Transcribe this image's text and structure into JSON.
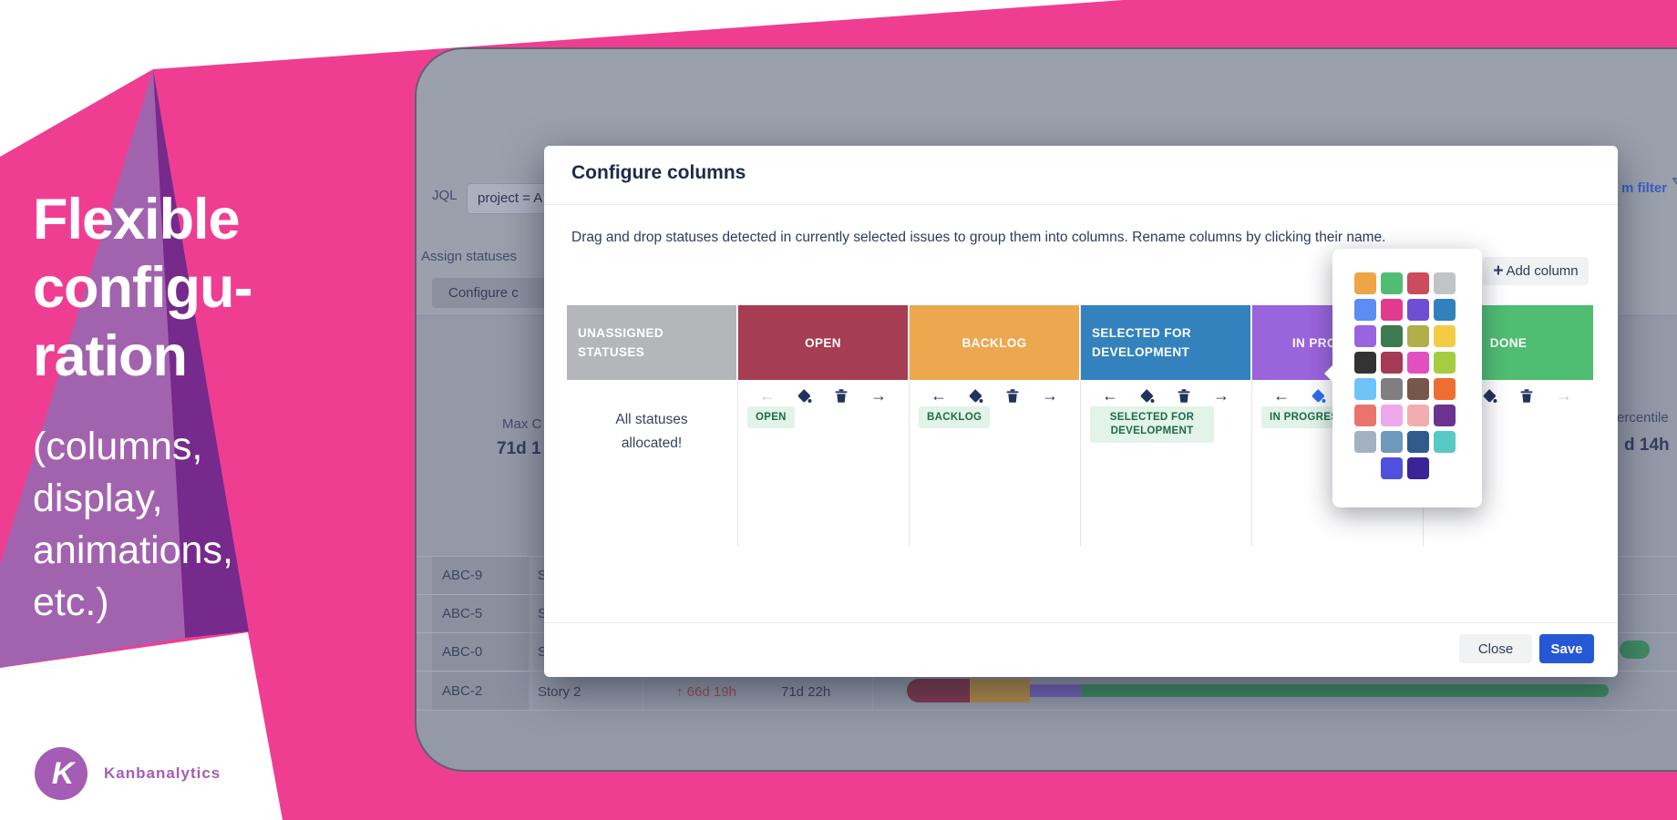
{
  "hero": {
    "headline": [
      "Flexible",
      "configu-",
      "ration"
    ],
    "subline": [
      "(columns,",
      "display,",
      "animations,",
      "etc.)"
    ],
    "brand": "Kanbanalytics",
    "logo_letter": "K",
    "colors": {
      "pink": "#ef3e92",
      "purple_light": "#a263ae",
      "purple_dark": "#752a8c",
      "brand_purple": "#a55cb5"
    }
  },
  "icons": {
    "left": "←",
    "right": "→",
    "up": "↑",
    "plus": "+"
  },
  "app": {
    "jql_label": "JQL",
    "jql_value": "project = A",
    "assign_statuses_label": "Assign statuses",
    "configure_button_label": "Configure c",
    "filter_link_label": "m filter",
    "stats": {
      "left_label": "Max C",
      "left_value": "71d 1",
      "right_label": "ercentile",
      "right_value": "d 14h"
    },
    "table": {
      "rows": [
        {
          "key": "ABC-9",
          "title": "S"
        },
        {
          "key": "ABC-5",
          "title": "S"
        },
        {
          "key": "ABC-0",
          "title": "S"
        },
        {
          "key": "ABC-2",
          "title": "Story 2",
          "lead_time": "66d 19h",
          "cycle_time": "71d 22h"
        }
      ]
    },
    "timeline_colors": {
      "open": "#7e3a50",
      "backlog": "#b08a4a",
      "in_progress": "#7563b8",
      "done": "#3f8b63"
    }
  },
  "modal": {
    "title": "Configure columns",
    "description": "Drag and drop statuses detected in currently selected issues to group them into columns. Rename columns by clicking their name.",
    "add_column_label": "Add column",
    "unassigned_note_line1": "All statuses",
    "unassigned_note_line2": "allocated!",
    "columns": [
      {
        "name_line1": "UNASSIGNED",
        "name_line2": "STATUSES",
        "color": "#b4b6b9"
      },
      {
        "name": "OPEN",
        "color": "#a63d52",
        "chip": "OPEN"
      },
      {
        "name": "BACKLOG",
        "color": "#eda74f",
        "chip": "BACKLOG"
      },
      {
        "name_line1": "SELECTED FOR",
        "name_line2": "DEVELOPMENT",
        "color": "#3382bd",
        "chip_line1": "SELECTED FOR",
        "chip_line2": "DEVELOPMENT"
      },
      {
        "name": "IN PROGRESS",
        "color": "#9a64dd",
        "chip": "IN PROGRESS"
      },
      {
        "name": "DONE",
        "color": "#4fbd72",
        "chip": "DONE"
      }
    ],
    "close_label": "Close",
    "save_label": "Save",
    "accent_blue": "#2458d5"
  },
  "palette": {
    "rows": [
      [
        "#EDA545",
        "#50BD72",
        "#CC4B5C",
        "#C2C3C5"
      ],
      [
        "#5B8DF2",
        "#E23A8E",
        "#6E4FD4",
        "#3181BD"
      ],
      [
        "#9A64E0",
        "#3D7A4F",
        "#B2AE49",
        "#F2CD44"
      ],
      [
        "#333333",
        "#A43A55",
        "#E44FC0",
        "#A6CC40"
      ],
      [
        "#6EC4F7",
        "#7F7F82",
        "#77574A",
        "#EE6D31"
      ],
      [
        "#EA746D",
        "#EFA7EE",
        "#F2AEAE",
        "#6A3391"
      ],
      [
        "#A3B2C2",
        "#6D99BB",
        "#2F5C8A",
        "#58C9C5"
      ],
      [
        "#4F50DD",
        "#3A2597"
      ]
    ]
  }
}
